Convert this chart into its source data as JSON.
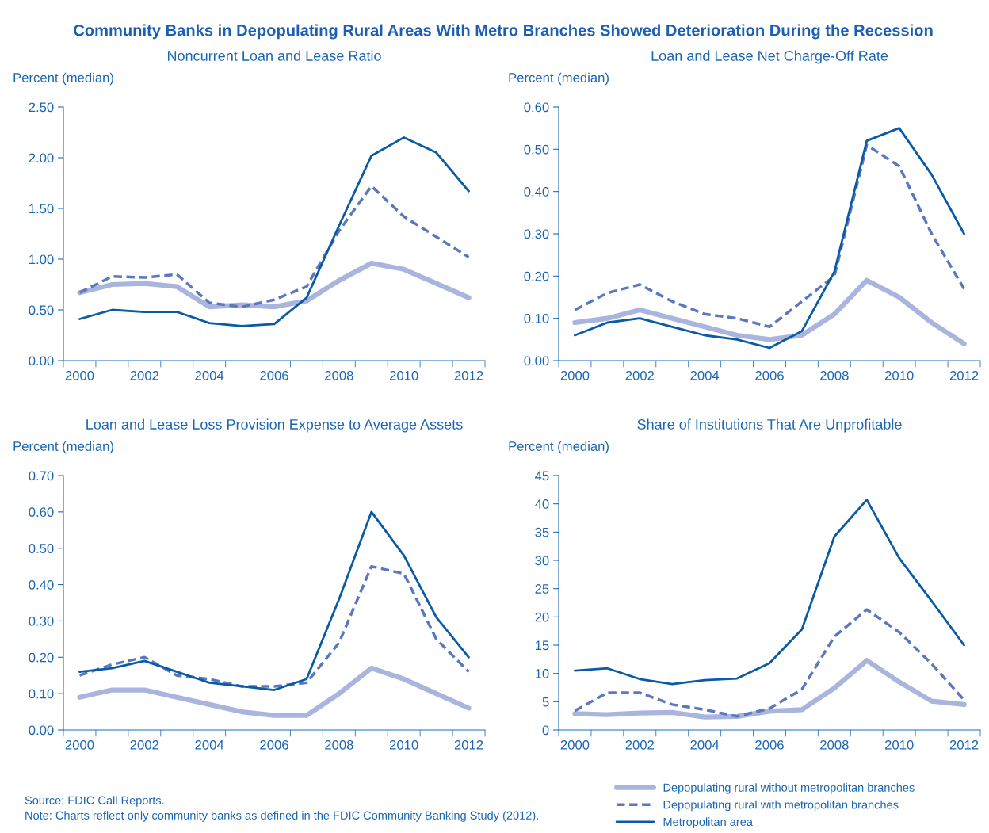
{
  "chart_data": [
    {
      "type": "line",
      "title": "Noncurrent Loan and Lease Ratio",
      "ylabel": "Percent (median)",
      "annotations": [
        "Community Banks in Depopulating Rural Areas With Metro Branches Showed Deterioration During the Recession"
      ],
      "categories": [
        "2000",
        null,
        "2002",
        null,
        "2004",
        null,
        "2006",
        null,
        "2008",
        null,
        "2010",
        null,
        "2012"
      ],
      "ylim": [
        0,
        2.5
      ],
      "yticks": [
        {
          "value": 0,
          "label": "0.00"
        },
        {
          "value": 0.5,
          "label": "0.50"
        },
        {
          "value": 1.0,
          "label": "1.00"
        },
        {
          "value": 1.5,
          "label": "1.50"
        },
        {
          "value": 2.0,
          "label": "2.00"
        },
        {
          "value": 2.5,
          "label": "2.50"
        }
      ],
      "grid": false,
      "legend": false,
      "series": [
        {
          "color": "#aab5de",
          "line_style": "solid",
          "values": [
            0.67,
            0.75,
            0.76,
            0.73,
            0.53,
            0.55,
            0.53,
            0.59,
            0.79,
            0.96,
            0.9,
            0.76,
            0.62
          ]
        },
        {
          "color": "#5b78bf",
          "line_style": "dashed",
          "values": [
            0.67,
            0.83,
            0.82,
            0.85,
            0.57,
            0.53,
            0.6,
            0.73,
            1.28,
            1.72,
            1.42,
            1.22,
            1.02
          ]
        },
        {
          "color": "#0a5aa6",
          "line_style": "solid",
          "values": [
            0.41,
            0.5,
            0.48,
            0.48,
            0.37,
            0.34,
            0.36,
            0.62,
            1.33,
            2.02,
            2.2,
            2.05,
            1.67
          ]
        }
      ]
    },
    {
      "type": "line",
      "title": "Loan and Lease Net Charge-Off Rate",
      "ylabel": "Percent (median)",
      "categories": [
        "2000",
        null,
        "2002",
        null,
        "2004",
        null,
        "2006",
        null,
        "2008",
        null,
        "2010",
        null,
        "2012"
      ],
      "ylim": [
        0,
        0.6
      ],
      "yticks": [
        {
          "value": 0,
          "label": "0.00"
        },
        {
          "value": 0.1,
          "label": "0.10"
        },
        {
          "value": 0.2,
          "label": "0.20"
        },
        {
          "value": 0.3,
          "label": "0.30"
        },
        {
          "value": 0.4,
          "label": "0.40"
        },
        {
          "value": 0.5,
          "label": "0.50"
        },
        {
          "value": 0.6,
          "label": "0.60"
        }
      ],
      "grid": false,
      "legend": false,
      "series": [
        {
          "color": "#aab5de",
          "line_style": "solid",
          "values": [
            0.09,
            0.1,
            0.12,
            0.1,
            0.08,
            0.06,
            0.05,
            0.06,
            0.11,
            0.19,
            0.15,
            0.09,
            0.04
          ]
        },
        {
          "color": "#5b78bf",
          "line_style": "dashed",
          "values": [
            0.12,
            0.16,
            0.18,
            0.14,
            0.11,
            0.1,
            0.08,
            0.14,
            0.2,
            0.51,
            0.46,
            0.3,
            0.17
          ]
        },
        {
          "color": "#0a5aa6",
          "line_style": "solid",
          "values": [
            0.06,
            0.09,
            0.1,
            0.08,
            0.06,
            0.05,
            0.03,
            0.07,
            0.21,
            0.52,
            0.55,
            0.44,
            0.3
          ]
        }
      ]
    },
    {
      "type": "line",
      "title": "Loan and Lease Loss Provision Expense to Average Assets",
      "ylabel": "Percent (median)",
      "annotations": [
        "Source: FDIC Call Reports.",
        "Note: Charts reflect only community banks as defined in the FDIC Community Banking Study (2012)."
      ],
      "categories": [
        "2000",
        null,
        "2002",
        null,
        "2004",
        null,
        "2006",
        null,
        "2008",
        null,
        "2010",
        null,
        "2012"
      ],
      "ylim": [
        0,
        0.7
      ],
      "yticks": [
        {
          "value": 0,
          "label": "0.00"
        },
        {
          "value": 0.1,
          "label": "0.10"
        },
        {
          "value": 0.2,
          "label": "0.20"
        },
        {
          "value": 0.3,
          "label": "0.30"
        },
        {
          "value": 0.4,
          "label": "0.40"
        },
        {
          "value": 0.5,
          "label": "0.50"
        },
        {
          "value": 0.6,
          "label": "0.60"
        },
        {
          "value": 0.7,
          "label": "0.70"
        }
      ],
      "grid": false,
      "legend": false,
      "series": [
        {
          "color": "#aab5de",
          "line_style": "solid",
          "values": [
            0.09,
            0.11,
            0.11,
            0.09,
            0.07,
            0.05,
            0.04,
            0.04,
            0.1,
            0.17,
            0.14,
            0.1,
            0.06
          ]
        },
        {
          "color": "#5b78bf",
          "line_style": "dashed",
          "values": [
            0.15,
            0.18,
            0.2,
            0.15,
            0.14,
            0.12,
            0.12,
            0.13,
            0.24,
            0.45,
            0.43,
            0.25,
            0.16
          ]
        },
        {
          "color": "#0a5aa6",
          "line_style": "solid",
          "values": [
            0.16,
            0.17,
            0.19,
            0.16,
            0.13,
            0.12,
            0.11,
            0.14,
            0.36,
            0.6,
            0.48,
            0.31,
            0.2
          ]
        }
      ]
    },
    {
      "type": "line",
      "title": "Share of Institutions That Are Unprofitable",
      "ylabel": "Percent (median)",
      "categories": [
        "2000",
        null,
        "2002",
        null,
        "2004",
        null,
        "2006",
        null,
        "2008",
        null,
        "2010",
        null,
        "2012"
      ],
      "ylim": [
        0,
        45
      ],
      "yticks": [
        0,
        5,
        10,
        15,
        20,
        25,
        30,
        35,
        40,
        45
      ],
      "grid": false,
      "legend": "bottom",
      "series": [
        {
          "name": "Depopulating rural without metropolitan branches",
          "color": "#aab5de",
          "line_style": "solid",
          "values": [
            2.9,
            2.7,
            3.0,
            3.1,
            2.3,
            2.4,
            3.3,
            3.6,
            7.4,
            12.3,
            8.5,
            5.1,
            4.5
          ]
        },
        {
          "name": "Depopulating rural with metropolitan branches",
          "color": "#5b78bf",
          "line_style": "dashed",
          "values": [
            3.4,
            6.6,
            6.6,
            4.5,
            3.6,
            2.4,
            3.8,
            7.2,
            16.5,
            21.3,
            17.3,
            11.7,
            5.3
          ]
        },
        {
          "name": "Metropolitan area",
          "color": "#0a5aa6",
          "line_style": "solid",
          "values": [
            10.5,
            10.9,
            9.0,
            8.1,
            8.8,
            9.1,
            11.8,
            17.8,
            34.2,
            40.7,
            30.4,
            22.8,
            15.0
          ]
        }
      ]
    }
  ]
}
